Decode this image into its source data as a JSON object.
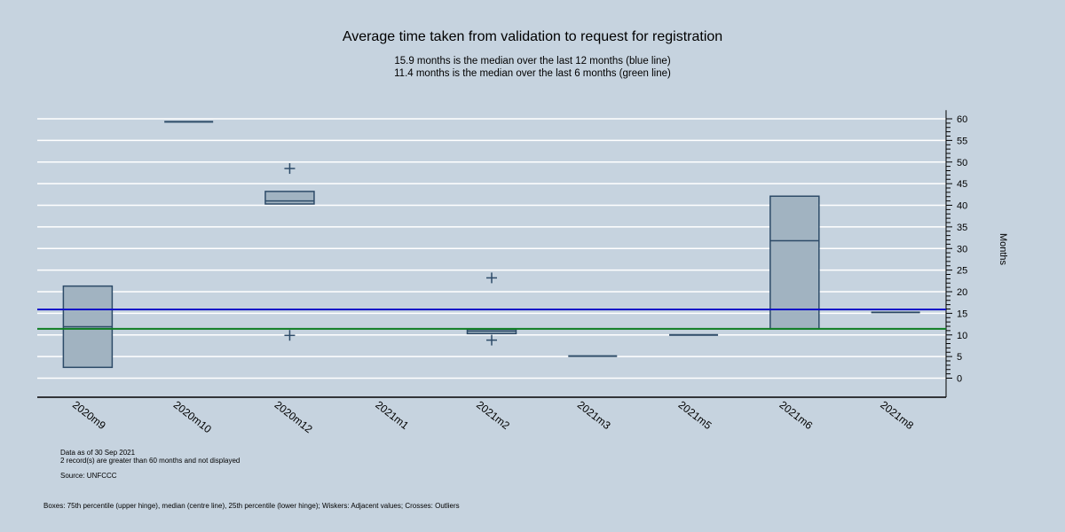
{
  "chart_data": {
    "type": "box",
    "title": "Average time taken from validation to request for registration",
    "subtitle_lines": [
      "15.9 months is the median over the last 12 months (blue line)",
      "11.4 months is the median over the last 6 months (green line)"
    ],
    "ylabel": "Months",
    "ylim": [
      -4,
      62
    ],
    "yticks": [
      0,
      5,
      10,
      15,
      20,
      25,
      30,
      35,
      40,
      45,
      50,
      55,
      60
    ],
    "categories": [
      "2020m9",
      "2020m10",
      "2020m12",
      "2021m1",
      "2021m2",
      "2021m3",
      "2021m5",
      "2021m6",
      "2021m8"
    ],
    "boxes": [
      {
        "category": "2020m9",
        "q1": 2.5,
        "median": 11.9,
        "q3": 21.3,
        "outliers": []
      },
      {
        "category": "2020m10",
        "q1": 59.3,
        "median": 59.3,
        "q3": 59.3,
        "outliers": []
      },
      {
        "category": "2020m12",
        "q1": 40.3,
        "median": 41.0,
        "q3": 43.2,
        "outliers": [
          48.5,
          9.9
        ]
      },
      {
        "category": "2021m1",
        "q1": 15.9,
        "median": 15.9,
        "q3": 15.9,
        "outliers": []
      },
      {
        "category": "2021m2",
        "q1": 10.3,
        "median": 10.9,
        "q3": 11.3,
        "outliers": [
          23.2,
          8.8
        ]
      },
      {
        "category": "2021m3",
        "q1": 5.1,
        "median": 5.1,
        "q3": 5.1,
        "outliers": []
      },
      {
        "category": "2021m5",
        "q1": 10.0,
        "median": 10.0,
        "q3": 10.0,
        "outliers": []
      },
      {
        "category": "2021m6",
        "q1": 11.4,
        "median": 31.8,
        "q3": 42.1,
        "outliers": []
      },
      {
        "category": "2021m8",
        "q1": 15.2,
        "median": 15.2,
        "q3": 15.2,
        "outliers": []
      }
    ],
    "reference_lines": [
      {
        "value": 15.9,
        "color": "#1010c8"
      },
      {
        "value": 11.4,
        "color": "#0e7d22"
      }
    ],
    "grid": true,
    "colors": {
      "background": "#c6d3df",
      "box_fill": "#a1b3c1",
      "box_stroke": "#2d4b68",
      "grid": "#ffffff"
    }
  },
  "notes": {
    "data_as_of": "Data as of 30 Sep 2021",
    "records_note": "2 record(s) are greater than 60 months and not displayed",
    "source": "Source: UNFCCC",
    "legend_note": "Boxes: 75th percentile (upper hinge), median (centre line), 25th percentile (lower hinge); Wiskers: Adjacent values; Crosses: Outliers"
  }
}
